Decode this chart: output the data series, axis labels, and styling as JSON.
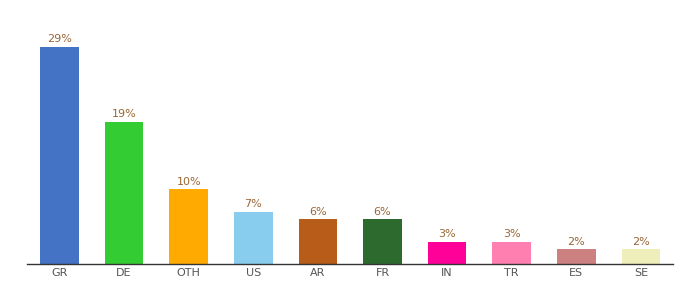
{
  "categories": [
    "GR",
    "DE",
    "OTH",
    "US",
    "AR",
    "FR",
    "IN",
    "TR",
    "ES",
    "SE"
  ],
  "values": [
    29,
    19,
    10,
    7,
    6,
    6,
    3,
    3,
    2,
    2
  ],
  "bar_colors": [
    "#4472c4",
    "#33cc33",
    "#ffaa00",
    "#88ccee",
    "#b85c1a",
    "#2d6a2d",
    "#ff0099",
    "#ff80b0",
    "#cc8080",
    "#eeeebb"
  ],
  "label_color": "#996633",
  "axis_label_color": "#555555",
  "background_color": "#ffffff",
  "bar_width": 0.6,
  "label_fontsize": 8,
  "tick_fontsize": 8,
  "ylim_max": 32
}
